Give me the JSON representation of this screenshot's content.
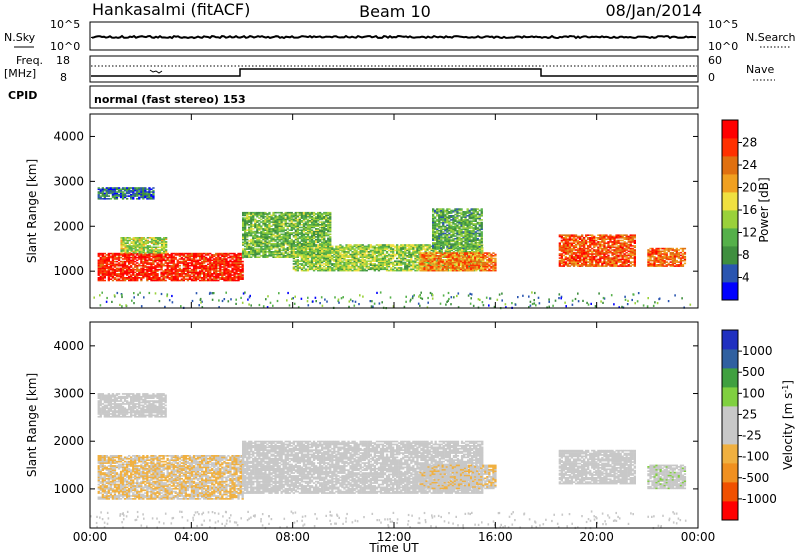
{
  "header": {
    "station": "Hankasalmi (fitACF)",
    "beam": "Beam 10",
    "date": "08/Jan/2014"
  },
  "panels": {
    "nsky": {
      "left_label": "N.Sky",
      "left_ticks": [
        "10^5",
        "10^0"
      ],
      "right_ticks": [
        "10^5",
        "10^0"
      ],
      "right_label": "N.Search"
    },
    "freq": {
      "left_label_top": "Freq.",
      "left_label_unit": "[MHz]",
      "left_ticks": [
        "18",
        "8"
      ],
      "right_ticks": [
        "60",
        "0"
      ],
      "right_label": "Nave"
    },
    "cpid": {
      "label": "CPID",
      "text": "normal (fast stereo) 153"
    }
  },
  "colorbars": {
    "power": {
      "label": "Power [dB]",
      "ticks": [
        "28",
        "24",
        "20",
        "16",
        "12",
        "8",
        "4"
      ],
      "colors": [
        "#0000ff",
        "#2a55b0",
        "#3f8f3f",
        "#55b04a",
        "#9ad13a",
        "#f0e040",
        "#f0a020",
        "#e07010",
        "#ff3000",
        "#ff0000"
      ]
    },
    "velocity": {
      "label": "Velocity [m s",
      "label_sup": "-1",
      "label_close": "]",
      "ticks": [
        "1000",
        "500",
        "100",
        "25",
        "-25",
        "-100",
        "-500",
        "-1000"
      ],
      "colors": [
        "#ff0000",
        "#f05000",
        "#f09020",
        "#f0b040",
        "#c8c8c8",
        "#c8c8c8",
        "#80d040",
        "#40a040",
        "#3060a0",
        "#2030c0"
      ]
    }
  },
  "chart_data": [
    {
      "type": "heatmap",
      "title": "Power",
      "xlabel": "Time UT",
      "ylabel": "Slant Range [km]",
      "x_ticks": [
        "00:00",
        "04:00",
        "08:00",
        "12:00",
        "16:00",
        "20:00",
        "00:00"
      ],
      "y_ticks": [
        "1000",
        "2000",
        "3000",
        "4000"
      ],
      "xlim_hours": [
        0,
        24
      ],
      "ylim_km": [
        180,
        4500
      ],
      "zlim_db": [
        0,
        30
      ],
      "regions": [
        {
          "t0": 0.3,
          "t1": 6.0,
          "r0": 780,
          "r1": 1400,
          "value": 27
        },
        {
          "t0": 1.2,
          "t1": 3.0,
          "r0": 1400,
          "r1": 1750,
          "value": 14
        },
        {
          "t0": 0.3,
          "t1": 2.5,
          "r0": 2600,
          "r1": 2850,
          "value": 6
        },
        {
          "t0": 6.0,
          "t1": 9.5,
          "r0": 1300,
          "r1": 2300,
          "value": 11
        },
        {
          "t0": 8.0,
          "t1": 15.5,
          "r0": 1000,
          "r1": 1600,
          "value": 13
        },
        {
          "t0": 13.0,
          "t1": 16.0,
          "r0": 1000,
          "r1": 1400,
          "value": 22
        },
        {
          "t0": 13.5,
          "t1": 15.5,
          "r0": 1500,
          "r1": 2400,
          "value": 10
        },
        {
          "t0": 18.5,
          "t1": 21.5,
          "r0": 1100,
          "r1": 1800,
          "value": 24
        },
        {
          "t0": 22.0,
          "t1": 23.5,
          "r0": 1100,
          "r1": 1500,
          "value": 23
        }
      ]
    },
    {
      "type": "heatmap",
      "title": "Velocity",
      "xlabel": "Time UT",
      "ylabel": "Slant Range [km]",
      "x_ticks": [
        "00:00",
        "04:00",
        "08:00",
        "12:00",
        "16:00",
        "20:00",
        "00:00"
      ],
      "y_ticks": [
        "1000",
        "2000",
        "3000",
        "4000"
      ],
      "xlim_hours": [
        0,
        24
      ],
      "ylim_km": [
        180,
        4500
      ],
      "zlim_ms": [
        -1000,
        1000
      ],
      "regions": [
        {
          "t0": 0.3,
          "t1": 6.0,
          "r0": 780,
          "r1": 1700,
          "value": -200
        },
        {
          "t0": 0.3,
          "t1": 3.0,
          "r0": 2500,
          "r1": 3000,
          "value": 0
        },
        {
          "t0": 6.0,
          "t1": 15.5,
          "r0": 900,
          "r1": 2000,
          "value": 0
        },
        {
          "t0": 13.0,
          "t1": 16.0,
          "r0": 1000,
          "r1": 1500,
          "value": -150
        },
        {
          "t0": 18.5,
          "t1": 21.5,
          "r0": 1100,
          "r1": 1800,
          "value": 60
        },
        {
          "t0": 22.0,
          "t1": 23.5,
          "r0": 1000,
          "r1": 1500,
          "value": 100
        }
      ]
    }
  ]
}
